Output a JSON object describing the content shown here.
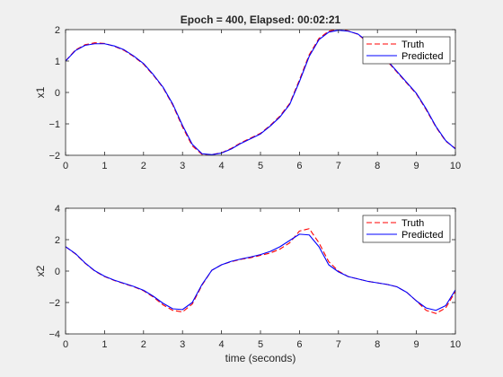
{
  "figure": {
    "title": "Epoch = 400, Elapsed: 00:02:21",
    "colors": {
      "truth": "#ff0000",
      "predicted": "#0000ff",
      "background": "#f0f0f0",
      "axes_bg": "#ffffff"
    }
  },
  "chart_data": [
    {
      "type": "line",
      "title": "Epoch = 400, Elapsed: 00:02:21",
      "xlabel": "",
      "ylabel": "x1",
      "xlim": [
        0,
        10
      ],
      "ylim": [
        -2,
        2
      ],
      "xticks": [
        0,
        1,
        2,
        3,
        4,
        5,
        6,
        7,
        8,
        9,
        10
      ],
      "yticks": [
        -2,
        -1,
        0,
        1,
        2
      ],
      "legend": {
        "position": "top-right",
        "entries": [
          "Truth",
          "Predicted"
        ]
      },
      "series": [
        {
          "name": "Truth",
          "style": "dashed",
          "x": [
            0,
            0.25,
            0.5,
            0.75,
            1,
            1.25,
            1.5,
            1.75,
            2,
            2.25,
            2.5,
            2.75,
            3,
            3.25,
            3.5,
            3.75,
            4,
            4.25,
            4.5,
            4.75,
            5,
            5.25,
            5.5,
            5.75,
            6,
            6.25,
            6.5,
            6.75,
            7,
            7.25,
            7.5,
            7.75,
            8,
            8.25,
            8.5,
            8.75,
            9,
            9.25,
            9.5,
            9.75,
            10
          ],
          "y": [
            1.0,
            1.35,
            1.52,
            1.58,
            1.56,
            1.47,
            1.34,
            1.14,
            0.9,
            0.55,
            0.15,
            -0.4,
            -1.1,
            -1.7,
            -1.97,
            -1.98,
            -1.92,
            -1.78,
            -1.6,
            -1.45,
            -1.3,
            -1.05,
            -0.75,
            -0.35,
            0.4,
            1.2,
            1.72,
            1.95,
            2.02,
            1.96,
            1.85,
            1.6,
            1.3,
            1.0,
            0.65,
            0.3,
            -0.05,
            -0.55,
            -1.1,
            -1.55,
            -1.78
          ]
        },
        {
          "name": "Predicted",
          "style": "solid",
          "x": [
            0,
            0.25,
            0.5,
            0.75,
            1,
            1.25,
            1.5,
            1.75,
            2,
            2.25,
            2.5,
            2.75,
            3,
            3.25,
            3.5,
            3.75,
            4,
            4.25,
            4.5,
            4.75,
            5,
            5.25,
            5.5,
            5.75,
            6,
            6.25,
            6.5,
            6.75,
            7,
            7.25,
            7.5,
            7.75,
            8,
            8.25,
            8.5,
            8.75,
            9,
            9.25,
            9.5,
            9.75,
            10
          ],
          "y": [
            1.0,
            1.33,
            1.5,
            1.55,
            1.55,
            1.48,
            1.36,
            1.16,
            0.92,
            0.57,
            0.17,
            -0.37,
            -1.05,
            -1.65,
            -1.95,
            -1.98,
            -1.93,
            -1.8,
            -1.62,
            -1.47,
            -1.32,
            -1.07,
            -0.78,
            -0.38,
            0.35,
            1.15,
            1.68,
            1.92,
            1.98,
            1.95,
            1.86,
            1.62,
            1.32,
            1.02,
            0.67,
            0.32,
            -0.03,
            -0.52,
            -1.08,
            -1.53,
            -1.8
          ]
        }
      ]
    },
    {
      "type": "line",
      "title": "",
      "xlabel": "time (seconds)",
      "ylabel": "x2",
      "xlim": [
        0,
        10
      ],
      "ylim": [
        -4,
        4
      ],
      "xticks": [
        0,
        1,
        2,
        3,
        4,
        5,
        6,
        7,
        8,
        9,
        10
      ],
      "yticks": [
        -4,
        -2,
        0,
        2,
        4
      ],
      "legend": {
        "position": "top-right",
        "entries": [
          "Truth",
          "Predicted"
        ]
      },
      "series": [
        {
          "name": "Truth",
          "style": "dashed",
          "x": [
            0,
            0.25,
            0.5,
            0.75,
            1,
            1.25,
            1.5,
            1.75,
            2,
            2.25,
            2.5,
            2.75,
            3,
            3.25,
            3.5,
            3.75,
            4,
            4.25,
            4.5,
            4.75,
            5,
            5.25,
            5.5,
            5.75,
            6,
            6.25,
            6.5,
            6.75,
            7,
            7.25,
            7.5,
            7.75,
            8,
            8.25,
            8.5,
            8.75,
            9,
            9.25,
            9.5,
            9.75,
            10
          ],
          "y": [
            1.55,
            1.1,
            0.5,
            0.0,
            -0.35,
            -0.6,
            -0.8,
            -1.0,
            -1.25,
            -1.65,
            -2.15,
            -2.5,
            -2.6,
            -2.1,
            -0.9,
            0.05,
            0.4,
            0.6,
            0.75,
            0.85,
            1.0,
            1.15,
            1.4,
            1.8,
            2.55,
            2.7,
            1.8,
            0.6,
            0.0,
            -0.35,
            -0.5,
            -0.65,
            -0.75,
            -0.85,
            -1.0,
            -1.35,
            -1.9,
            -2.5,
            -2.7,
            -2.35,
            -1.3
          ]
        },
        {
          "name": "Predicted",
          "style": "solid",
          "x": [
            0,
            0.25,
            0.5,
            0.75,
            1,
            1.25,
            1.5,
            1.75,
            2,
            2.25,
            2.5,
            2.75,
            3,
            3.25,
            3.5,
            3.75,
            4,
            4.25,
            4.5,
            4.75,
            5,
            5.25,
            5.5,
            5.75,
            6,
            6.25,
            6.5,
            6.75,
            7,
            7.25,
            7.5,
            7.75,
            8,
            8.25,
            8.5,
            8.75,
            9,
            9.25,
            9.5,
            9.75,
            10
          ],
          "y": [
            1.55,
            1.12,
            0.52,
            0.02,
            -0.33,
            -0.58,
            -0.78,
            -0.98,
            -1.22,
            -1.6,
            -2.05,
            -2.4,
            -2.45,
            -2.0,
            -0.85,
            0.05,
            0.4,
            0.62,
            0.77,
            0.9,
            1.05,
            1.25,
            1.55,
            1.95,
            2.35,
            2.3,
            1.55,
            0.4,
            -0.05,
            -0.35,
            -0.5,
            -0.65,
            -0.75,
            -0.85,
            -1.0,
            -1.35,
            -1.9,
            -2.35,
            -2.5,
            -2.2,
            -1.2
          ]
        }
      ]
    }
  ]
}
